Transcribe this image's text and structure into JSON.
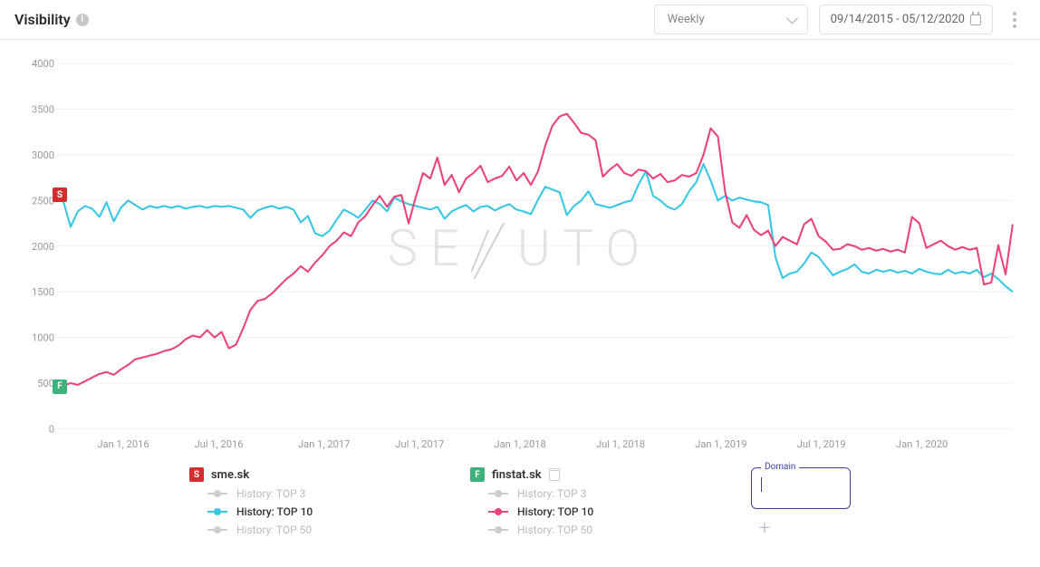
{
  "header": {
    "title": "Visibility",
    "period_selected": "Weekly",
    "date_range": "09/14/2015 - 05/12/2020"
  },
  "watermark_text": "SENUTO",
  "chart": {
    "type": "line",
    "ylim": [
      0,
      4000
    ],
    "ytick_step": 500,
    "yticks": [
      0,
      500,
      1000,
      1500,
      2000,
      2500,
      3000,
      3500,
      4000
    ],
    "x_labels": [
      "Jan 1, 2016",
      "Jul 1, 2016",
      "Jan 1, 2017",
      "Jul 1, 2017",
      "Jan 1, 2018",
      "Jul 1, 2018",
      "Jan 1, 2019",
      "Jul 1, 2019",
      "Jan 1, 2020"
    ],
    "x_label_positions_pct": [
      7,
      17,
      28,
      38,
      48.5,
      59,
      69.5,
      80,
      90.5
    ],
    "background_color": "#ffffff",
    "grid_color": "#f0f0f0",
    "axis_color": "#999999",
    "label_color": "#999999",
    "label_fontsize": 11,
    "line_width": 2,
    "series": [
      {
        "name": "sme.sk TOP10",
        "color": "#35c6e4",
        "favicon_y_value": 2560,
        "values": [
          2560,
          2490,
          2210,
          2380,
          2440,
          2410,
          2320,
          2480,
          2270,
          2420,
          2500,
          2450,
          2400,
          2440,
          2420,
          2440,
          2420,
          2440,
          2410,
          2430,
          2440,
          2420,
          2440,
          2430,
          2440,
          2420,
          2400,
          2310,
          2390,
          2420,
          2440,
          2410,
          2430,
          2400,
          2260,
          2330,
          2140,
          2110,
          2170,
          2290,
          2400,
          2360,
          2310,
          2400,
          2500,
          2460,
          2380,
          2530,
          2490,
          2460,
          2440,
          2420,
          2400,
          2430,
          2300,
          2380,
          2420,
          2450,
          2380,
          2430,
          2440,
          2390,
          2430,
          2460,
          2400,
          2380,
          2350,
          2510,
          2650,
          2620,
          2590,
          2340,
          2440,
          2500,
          2600,
          2460,
          2440,
          2420,
          2450,
          2480,
          2500,
          2680,
          2820,
          2550,
          2500,
          2430,
          2400,
          2460,
          2600,
          2700,
          2900,
          2720,
          2500,
          2550,
          2500,
          2530,
          2510,
          2490,
          2480,
          2450,
          1880,
          1650,
          1700,
          1720,
          1810,
          1930,
          1880,
          1780,
          1680,
          1720,
          1750,
          1800,
          1720,
          1700,
          1740,
          1720,
          1740,
          1710,
          1730,
          1700,
          1750,
          1720,
          1700,
          1690,
          1740,
          1700,
          1720,
          1700,
          1740,
          1660,
          1700,
          1640,
          1560,
          1500
        ]
      },
      {
        "name": "finstat.sk TOP10",
        "color": "#ec407a",
        "favicon_y_value": 460,
        "values": [
          460,
          470,
          500,
          480,
          520,
          560,
          600,
          620,
          590,
          650,
          700,
          760,
          780,
          800,
          820,
          850,
          870,
          910,
          980,
          1020,
          1000,
          1080,
          1000,
          1060,
          880,
          920,
          1100,
          1300,
          1400,
          1420,
          1480,
          1560,
          1640,
          1700,
          1780,
          1720,
          1820,
          1900,
          2000,
          2060,
          2150,
          2110,
          2260,
          2330,
          2450,
          2550,
          2430,
          2540,
          2560,
          2250,
          2540,
          2800,
          2740,
          2970,
          2670,
          2780,
          2590,
          2740,
          2800,
          2880,
          2700,
          2740,
          2770,
          2870,
          2720,
          2800,
          2670,
          2820,
          3100,
          3320,
          3420,
          3450,
          3350,
          3240,
          3220,
          3160,
          2760,
          2840,
          2900,
          2800,
          2770,
          2840,
          2820,
          2740,
          2790,
          2700,
          2720,
          2780,
          2760,
          2800,
          3000,
          3290,
          3200,
          2600,
          2260,
          2200,
          2340,
          2180,
          2120,
          2170,
          2000,
          2100,
          2060,
          2020,
          2240,
          2300,
          2110,
          2050,
          1960,
          1970,
          2020,
          2000,
          1960,
          1980,
          1950,
          1970,
          1940,
          1960,
          1930,
          2320,
          2250,
          1980,
          2020,
          2060,
          2000,
          1960,
          1990,
          1960,
          1980,
          1580,
          1600,
          2010,
          1690,
          2240
        ]
      }
    ]
  },
  "legend": {
    "columns": [
      {
        "favicon": "sme",
        "domain": "sme.sk",
        "deletable": false,
        "items": [
          {
            "label": "History: TOP 3",
            "active": false,
            "swatch": "grey"
          },
          {
            "label": "History: TOP 10",
            "active": true,
            "swatch": "cyan"
          },
          {
            "label": "History: TOP 50",
            "active": false,
            "swatch": "grey"
          }
        ]
      },
      {
        "favicon": "fin",
        "domain": "finstat.sk",
        "deletable": true,
        "items": [
          {
            "label": "History: TOP 3",
            "active": false,
            "swatch": "grey"
          },
          {
            "label": "History: TOP 10",
            "active": true,
            "swatch": "pink"
          },
          {
            "label": "History: TOP 50",
            "active": false,
            "swatch": "grey"
          }
        ]
      }
    ],
    "domain_input_label": "Domain",
    "domain_input_value": ""
  }
}
